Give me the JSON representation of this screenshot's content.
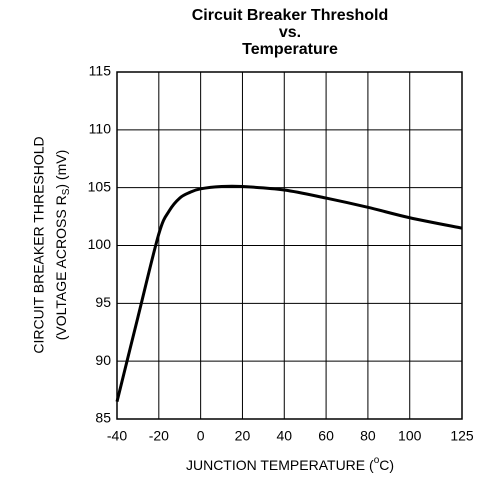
{
  "chart_data": {
    "type": "line",
    "title": [
      "Circuit Breaker Threshold",
      "vs.",
      "Temperature"
    ],
    "y_label": [
      "CIRCUIT BREAKER THRESHOLD",
      [
        "(VOLTAGE ACROSS R",
        "S",
        ") (mV)"
      ]
    ],
    "x_label": [
      "JUNCTION TEMPERATURE (",
      "o",
      "C)"
    ],
    "x": [
      -40,
      -30,
      -20,
      -15,
      -10,
      -5,
      0,
      10,
      20,
      40,
      60,
      80,
      100,
      125
    ],
    "values": [
      86.5,
      93.8,
      101,
      103,
      104.1,
      104.6,
      104.9,
      105.1,
      105.1,
      104.8,
      104.1,
      103.3,
      102.4,
      101.5
    ],
    "color": "#000000",
    "xlim": [
      -40,
      125
    ],
    "xticks": [
      -40,
      -20,
      0,
      20,
      40,
      60,
      80,
      100,
      125
    ],
    "ylim": [
      85,
      115
    ],
    "yticks": [
      85,
      90,
      95,
      100,
      105,
      110,
      115
    ],
    "grid": true
  }
}
